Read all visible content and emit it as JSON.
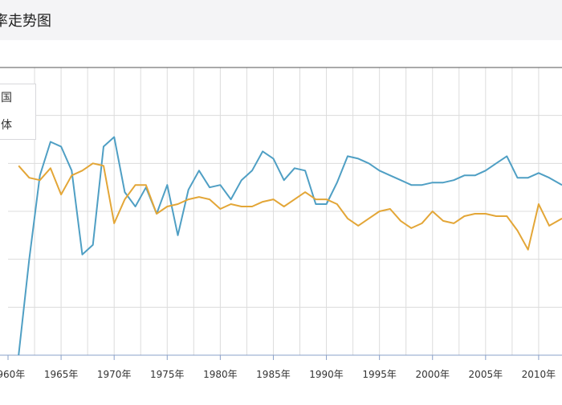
{
  "header": {
    "title": "率走势图"
  },
  "chart_data": {
    "type": "line",
    "title": "率走势图",
    "x_ticks": [
      "1960年",
      "1965年",
      "1970年",
      "1975年",
      "1980年",
      "1985年",
      "1990年",
      "1995年",
      "2000年",
      "2005年",
      "2010年"
    ],
    "xlim": [
      1960,
      2012.2
    ],
    "ylim": [
      0,
      6
    ],
    "y_grid_values": [
      1,
      2,
      3,
      4,
      5,
      6
    ],
    "grid": true,
    "legend_position": "top-left",
    "series": [
      {
        "name": "国",
        "color": "#4f9fc4",
        "points": [
          [
            1961,
            0.0
          ],
          [
            1962,
            2.0
          ],
          [
            1963,
            3.75
          ],
          [
            1964,
            4.45
          ],
          [
            1965,
            4.35
          ],
          [
            1966,
            3.85
          ],
          [
            1967,
            2.1
          ],
          [
            1968,
            2.3
          ],
          [
            1969,
            4.35
          ],
          [
            1970,
            4.55
          ],
          [
            1971,
            3.4
          ],
          [
            1972,
            3.1
          ],
          [
            1973,
            3.5
          ],
          [
            1974,
            2.95
          ],
          [
            1975,
            3.55
          ],
          [
            1976,
            2.5
          ],
          [
            1977,
            3.45
          ],
          [
            1978,
            3.85
          ],
          [
            1979,
            3.5
          ],
          [
            1980,
            3.55
          ],
          [
            1981,
            3.25
          ],
          [
            1982,
            3.65
          ],
          [
            1983,
            3.85
          ],
          [
            1984,
            4.25
          ],
          [
            1985,
            4.1
          ],
          [
            1986,
            3.65
          ],
          [
            1987,
            3.9
          ],
          [
            1988,
            3.85
          ],
          [
            1989,
            3.15
          ],
          [
            1990,
            3.15
          ],
          [
            1991,
            3.6
          ],
          [
            1992,
            4.15
          ],
          [
            1993,
            4.1
          ],
          [
            1994,
            4.0
          ],
          [
            1995,
            3.85
          ],
          [
            1996,
            3.75
          ],
          [
            1997,
            3.65
          ],
          [
            1998,
            3.55
          ],
          [
            1999,
            3.55
          ],
          [
            2000,
            3.6
          ],
          [
            2001,
            3.6
          ],
          [
            2002,
            3.65
          ],
          [
            2003,
            3.75
          ],
          [
            2004,
            3.75
          ],
          [
            2005,
            3.85
          ],
          [
            2006,
            4.0
          ],
          [
            2007,
            4.15
          ],
          [
            2008,
            3.7
          ],
          [
            2009,
            3.7
          ],
          [
            2010,
            3.8
          ],
          [
            2011,
            3.7
          ],
          [
            2012.2,
            3.55
          ]
        ]
      },
      {
        "name": "体",
        "color": "#e3a637",
        "points": [
          [
            1961,
            3.95
          ],
          [
            1962,
            3.7
          ],
          [
            1963,
            3.65
          ],
          [
            1964,
            3.9
          ],
          [
            1965,
            3.35
          ],
          [
            1966,
            3.75
          ],
          [
            1967,
            3.85
          ],
          [
            1968,
            4.0
          ],
          [
            1969,
            3.95
          ],
          [
            1970,
            2.75
          ],
          [
            1971,
            3.25
          ],
          [
            1972,
            3.55
          ],
          [
            1973,
            3.55
          ],
          [
            1974,
            2.95
          ],
          [
            1975,
            3.1
          ],
          [
            1976,
            3.15
          ],
          [
            1977,
            3.25
          ],
          [
            1978,
            3.3
          ],
          [
            1979,
            3.25
          ],
          [
            1980,
            3.05
          ],
          [
            1981,
            3.15
          ],
          [
            1982,
            3.1
          ],
          [
            1983,
            3.1
          ],
          [
            1984,
            3.2
          ],
          [
            1985,
            3.25
          ],
          [
            1986,
            3.1
          ],
          [
            1987,
            3.25
          ],
          [
            1988,
            3.4
          ],
          [
            1989,
            3.25
          ],
          [
            1990,
            3.25
          ],
          [
            1991,
            3.15
          ],
          [
            1992,
            2.85
          ],
          [
            1993,
            2.7
          ],
          [
            1994,
            2.85
          ],
          [
            1995,
            3.0
          ],
          [
            1996,
            3.05
          ],
          [
            1997,
            2.8
          ],
          [
            1998,
            2.65
          ],
          [
            1999,
            2.75
          ],
          [
            2000,
            3.0
          ],
          [
            2001,
            2.8
          ],
          [
            2002,
            2.75
          ],
          [
            2003,
            2.9
          ],
          [
            2004,
            2.95
          ],
          [
            2005,
            2.95
          ],
          [
            2006,
            2.9
          ],
          [
            2007,
            2.9
          ],
          [
            2008,
            2.6
          ],
          [
            2009,
            2.2
          ],
          [
            2010,
            3.15
          ],
          [
            2011,
            2.7
          ],
          [
            2012.2,
            2.85
          ]
        ]
      }
    ]
  }
}
